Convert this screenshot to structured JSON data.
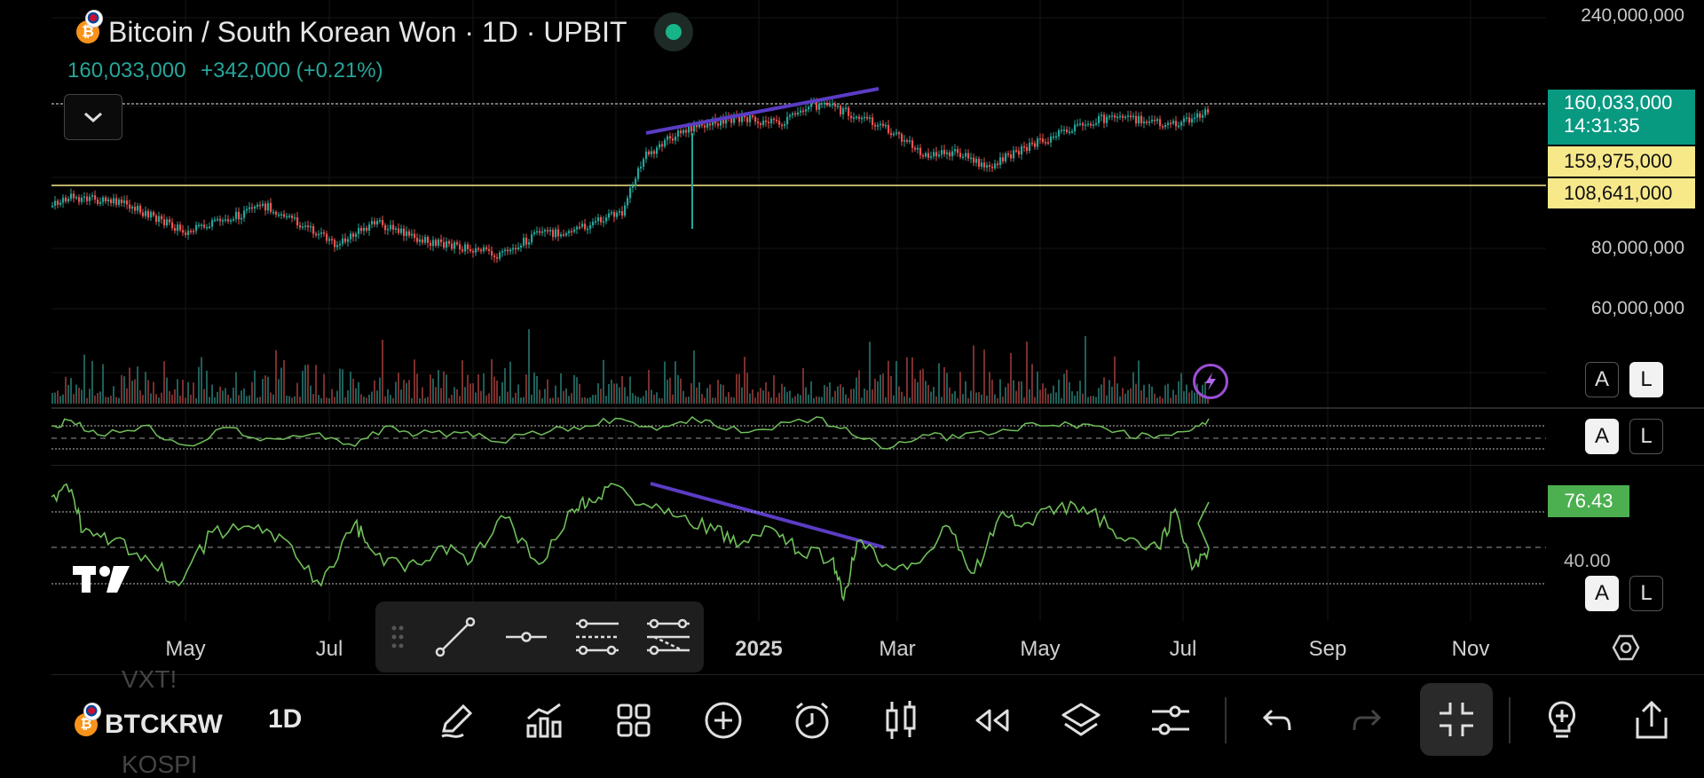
{
  "header": {
    "title": "Bitcoin / South Korean Won · 1D · UPBIT",
    "coin_glyph": "₿",
    "last_price": "160,033,000",
    "change": "+342,000 (+0.21%)"
  },
  "y_axis_labels": [
    "240,000,000",
    "80,000,000",
    "60,000,000"
  ],
  "price_tags": {
    "current_price": "160,033,000",
    "countdown": "14:31:35",
    "line_upper": "159,975,000",
    "line_lower": "108,641,000",
    "rsi_value": "76.43",
    "rsi_partial_label": "40.00"
  },
  "scale_buttons": {
    "auto": "A",
    "log": "L"
  },
  "x_axis_labels": [
    "May",
    "Jul",
    "2025",
    "Mar",
    "May",
    "Jul",
    "Sep",
    "Nov"
  ],
  "bottom_bar": {
    "symbol": "BTCKRW",
    "interval": "1D",
    "ghost_top": "VXT!",
    "ghost_bottom": "KOSPI"
  },
  "colors": {
    "up": "#26a69a",
    "down": "#ef5350",
    "trendline": "#5b3cc4",
    "rsi": "#6fbf5a",
    "countdown_tag": "#089981",
    "line_tag": "#f7e98a",
    "rsi_tag": "#4caf50"
  },
  "icons": {
    "draw_toolbar": [
      "drag-handle-icon",
      "trend-line-icon",
      "horizontal-ray-icon",
      "parallel-channel-icon",
      "pitchfork-icon"
    ],
    "bottom": [
      "pencil-icon",
      "indicators-icon",
      "templates-icon",
      "add-icon",
      "alert-clock-icon",
      "candles-icon",
      "replay-icon",
      "layers-icon",
      "settings-sliders-icon",
      "undo-icon",
      "redo-icon",
      "exit-fullscreen-icon",
      "add-bulb-icon",
      "share-icon"
    ]
  }
}
